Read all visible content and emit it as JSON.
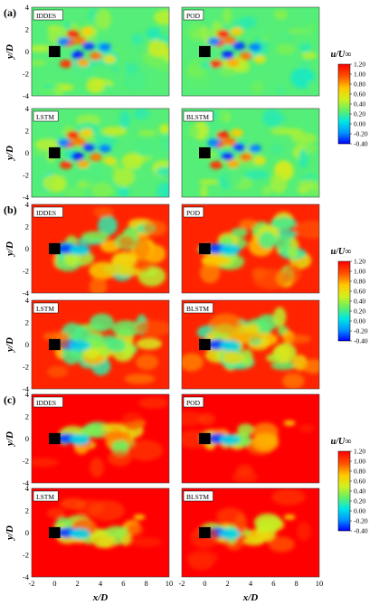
{
  "chart_data": {
    "type": "heatmap",
    "quantity_label": "u/U∞",
    "colorbar": {
      "ticks": [
        "1.20",
        "1.00",
        "0.80",
        "0.60",
        "0.40",
        "0.20",
        "0.00",
        "-0.20",
        "-0.40"
      ],
      "range": [
        -0.4,
        1.2
      ],
      "colormap": [
        "#0000ff",
        "#0096ff",
        "#00e6e6",
        "#64f064",
        "#d2f01e",
        "#ffc800",
        "#ff5000",
        "#ff0000"
      ]
    },
    "xlabel": "x/D",
    "ylabel": "y/D",
    "xticks": [
      "-2",
      "0",
      "2",
      "4",
      "6",
      "8",
      "10"
    ],
    "yticks": [
      "4",
      "2",
      "0",
      "-2",
      "-4"
    ],
    "xlim": [
      -2,
      10
    ],
    "ylim": [
      -4,
      4
    ],
    "panel_groups": [
      {
        "label": "(a)",
        "panels": [
          "IDDES",
          "POD",
          "LSTM",
          "BLSTM"
        ],
        "mean_level": 0.25
      },
      {
        "label": "(b)",
        "panels": [
          "IDDES",
          "POD",
          "LSTM",
          "BLSTM"
        ],
        "mean_level": 1.1
      },
      {
        "label": "(c)",
        "panels": [
          "IDDES",
          "POD",
          "LSTM",
          "BLSTM"
        ],
        "mean_level": 1.2
      }
    ]
  }
}
